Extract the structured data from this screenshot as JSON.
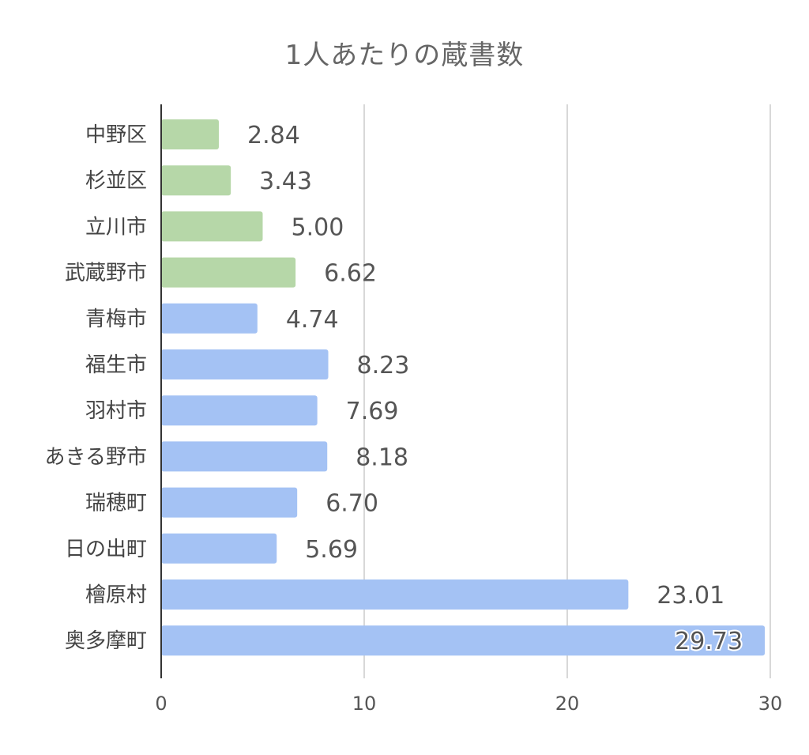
{
  "chart_data": {
    "type": "bar",
    "orientation": "horizontal",
    "title": "1人あたりの蔵書数",
    "categories": [
      "中野区",
      "杉並区",
      "立川市",
      "武蔵野市",
      "青梅市",
      "福生市",
      "羽村市",
      "あきる野市",
      "瑞穂町",
      "日の出町",
      "檜原村",
      "奥多摩町"
    ],
    "values": [
      2.84,
      3.43,
      5.0,
      6.62,
      4.74,
      8.23,
      7.69,
      8.18,
      6.7,
      5.69,
      23.01,
      29.73
    ],
    "value_labels": [
      "2.84",
      "3.43",
      "5.00",
      "6.62",
      "4.74",
      "8.23",
      "7.69",
      "8.18",
      "6.70",
      "5.69",
      "23.01",
      "29.73"
    ],
    "bar_colors": [
      "#b6d7a8",
      "#b6d7a8",
      "#b6d7a8",
      "#b6d7a8",
      "#a4c2f4",
      "#a4c2f4",
      "#a4c2f4",
      "#a4c2f4",
      "#a4c2f4",
      "#a4c2f4",
      "#a4c2f4",
      "#a4c2f4"
    ],
    "xlim": [
      0,
      30
    ],
    "xticks": [
      "0",
      "10",
      "20",
      "30"
    ],
    "xlabel": "",
    "ylabel": "",
    "grid": true,
    "legend": "none"
  }
}
